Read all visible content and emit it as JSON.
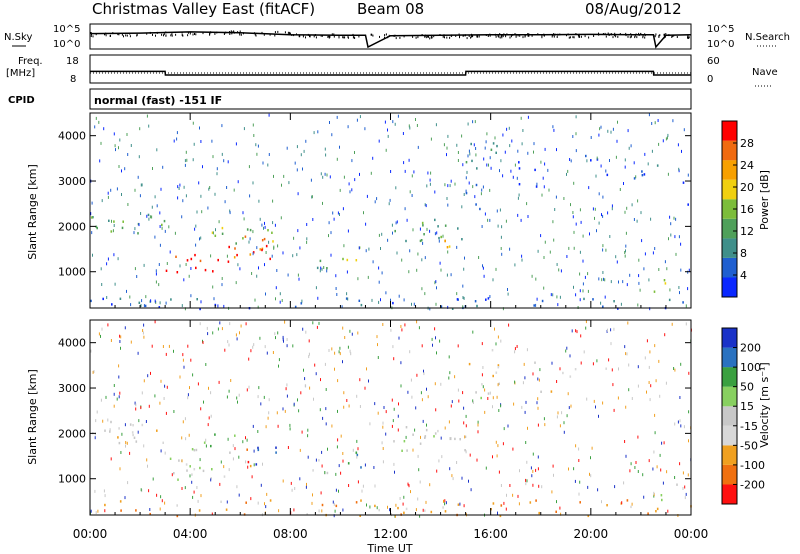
{
  "header": {
    "site_title": "Christmas Valley East (fitACF)",
    "beam": "Beam 08",
    "date": "08/Aug/2012"
  },
  "colors": {
    "power_scale": [
      "#0a28ff",
      "#1f5fd0",
      "#3f8f8a",
      "#4fa05a",
      "#7cbd3a",
      "#f0d010",
      "#f7a000",
      "#f06a10",
      "#ff0000"
    ],
    "velocity_scale": [
      "#1a32c8",
      "#2a72c0",
      "#3aa040",
      "#88d060",
      "#c8c8c8",
      "#d8d8d8",
      "#f0a020",
      "#f07010",
      "#ff1010"
    ],
    "noise": "#000000"
  },
  "chart_data": [
    {
      "type": "line",
      "name": "noise-panel",
      "left_label": "N.Sky",
      "right_label": "N.Search",
      "left_ticks": [
        "10^5",
        "10^0"
      ],
      "right_ticks": [
        "10^5",
        "10^0"
      ],
      "xlim": [
        0,
        24
      ],
      "series": [
        {
          "name": "N.Sky",
          "x": [
            0,
            2,
            4,
            6,
            8,
            10,
            11,
            11.1,
            12,
            14,
            16,
            18,
            20,
            22,
            22.5,
            22.6,
            23,
            24
          ],
          "y": [
            3.2,
            3.3,
            3.6,
            3.4,
            2.9,
            2.8,
            2.8,
            0,
            2.7,
            2.8,
            2.9,
            2.9,
            3.0,
            2.9,
            2.9,
            0,
            2.8,
            2.9
          ]
        }
      ]
    },
    {
      "type": "line",
      "name": "freq-panel",
      "left_label": "Freq.",
      "left_unit": "[MHz]",
      "right_label": "Nave",
      "left_ticks": [
        "18",
        "8"
      ],
      "right_ticks": [
        "60",
        "0"
      ],
      "xlim": [
        0,
        24
      ],
      "series": [
        {
          "name": "Freq",
          "x": [
            0,
            3,
            3.01,
            11,
            11.01,
            15,
            15.01,
            22.5,
            22.51,
            24
          ],
          "y": [
            12,
            12,
            10.5,
            10.5,
            10.5,
            10.5,
            12,
            12,
            10.5,
            10.5
          ]
        },
        {
          "name": "Nave",
          "x": [
            0,
            24
          ],
          "y": [
            20,
            20
          ]
        }
      ]
    },
    {
      "type": "text",
      "name": "cpid-panel",
      "label": "CPID",
      "value": "normal (fast) -151 IF"
    },
    {
      "type": "heatmap",
      "name": "power",
      "ylabel": "Slant Range [km]",
      "yticks": [
        1000,
        2000,
        3000,
        4000
      ],
      "ylim": [
        200,
        4500
      ],
      "xlim": [
        0,
        24
      ],
      "colorbar_label": "Power [dB]",
      "colorbar_ticks": [
        "28",
        "24",
        "20",
        "16",
        "12",
        "8",
        "4"
      ],
      "blobs": [
        {
          "t": [
            0.0,
            3.0
          ],
          "r": [
            1850,
            2300
          ],
          "level": 3,
          "density": 0.8
        },
        {
          "t": [
            3.0,
            5.5
          ],
          "r": [
            1000,
            1400
          ],
          "level": 8,
          "density": 0.9
        },
        {
          "t": [
            5.5,
            7.5
          ],
          "r": [
            1300,
            1800
          ],
          "level": 7,
          "density": 0.8
        },
        {
          "t": [
            4.0,
            7.5
          ],
          "r": [
            1600,
            2000
          ],
          "level": 4,
          "density": 0.6
        },
        {
          "t": [
            6.5,
            7.2
          ],
          "r": [
            1350,
            1700
          ],
          "level": 8,
          "density": 0.9
        },
        {
          "t": [
            8.5,
            9.5
          ],
          "r": [
            1100,
            1400
          ],
          "level": 2,
          "density": 0.7
        },
        {
          "t": [
            10.0,
            10.8
          ],
          "r": [
            1100,
            1600
          ],
          "level": 5,
          "density": 0.8
        },
        {
          "t": [
            12.0,
            15.0
          ],
          "r": [
            1700,
            2200
          ],
          "level": 3,
          "density": 0.7
        },
        {
          "t": [
            14.0,
            15.0
          ],
          "r": [
            1500,
            1900
          ],
          "level": 6,
          "density": 0.8
        },
        {
          "t": [
            15.0,
            16.5
          ],
          "r": [
            3200,
            3900
          ],
          "level": 2,
          "density": 0.6
        },
        {
          "t": [
            15.0,
            16.0
          ],
          "r": [
            2400,
            3100
          ],
          "level": 1,
          "density": 0.4
        },
        {
          "t": [
            17.0,
            21.0
          ],
          "r": [
            2900,
            3600
          ],
          "level": 0,
          "density": 0.25
        },
        {
          "t": [
            21.0,
            23.0
          ],
          "r": [
            2800,
            3400
          ],
          "level": 1,
          "density": 0.3
        },
        {
          "t": [
            23.0,
            24.0
          ],
          "r": [
            2500,
            3000
          ],
          "level": 0,
          "density": 0.3
        },
        {
          "t": [
            22.5,
            23.5
          ],
          "r": [
            500,
            900
          ],
          "level": 5,
          "density": 0.6
        },
        {
          "t": [
            0.0,
            24.0
          ],
          "r": [
            200,
            450
          ],
          "level": 1,
          "density": 0.5
        }
      ]
    },
    {
      "type": "heatmap",
      "name": "velocity",
      "ylabel": "Slant Range [km]",
      "yticks": [
        1000,
        2000,
        3000,
        4000
      ],
      "ylim": [
        200,
        4500
      ],
      "xlim": [
        0,
        24
      ],
      "colorbar_label": "Velocity [m s⁻¹]",
      "colorbar_ticks": [
        "200",
        "100",
        "50",
        "15",
        "-15",
        "-50",
        "-100",
        "-200"
      ],
      "blobs": [
        {
          "t": [
            0.0,
            3.0
          ],
          "r": [
            1800,
            2300
          ],
          "level": 5,
          "density": 0.8
        },
        {
          "t": [
            3.0,
            5.5
          ],
          "r": [
            1000,
            1500
          ],
          "level": 4,
          "density": 0.9
        },
        {
          "t": [
            4.0,
            6.0
          ],
          "r": [
            1600,
            2100
          ],
          "level": 3,
          "density": 0.6
        },
        {
          "t": [
            6.5,
            7.5
          ],
          "r": [
            1300,
            1750
          ],
          "level": 0,
          "density": 0.9
        },
        {
          "t": [
            5.5,
            6.5
          ],
          "r": [
            1300,
            1700
          ],
          "level": 7,
          "density": 0.5
        },
        {
          "t": [
            8.5,
            9.5
          ],
          "r": [
            1100,
            1500
          ],
          "level": 4,
          "density": 0.6
        },
        {
          "t": [
            10.0,
            10.8
          ],
          "r": [
            1100,
            1600
          ],
          "level": 2,
          "density": 0.8
        },
        {
          "t": [
            12.0,
            15.0
          ],
          "r": [
            1600,
            2200
          ],
          "level": 4,
          "density": 0.7
        },
        {
          "t": [
            15.0,
            16.5
          ],
          "r": [
            3100,
            3900
          ],
          "level": 5,
          "density": 0.5
        },
        {
          "t": [
            15.0,
            16.0
          ],
          "r": [
            2400,
            3000
          ],
          "level": 4,
          "density": 0.4
        },
        {
          "t": [
            17.0,
            21.0
          ],
          "r": [
            2900,
            3600
          ],
          "level": 5,
          "density": 0.2
        },
        {
          "t": [
            22.5,
            23.5
          ],
          "r": [
            500,
            900
          ],
          "level": 4,
          "density": 0.6
        },
        {
          "t": [
            0.0,
            24.0
          ],
          "r": [
            200,
            550
          ],
          "level": 6,
          "density": 0.45
        }
      ]
    }
  ],
  "x_axis": {
    "tick_labels": [
      "00:00",
      "04:00",
      "08:00",
      "12:00",
      "16:00",
      "20:00",
      "00:00"
    ],
    "tick_values": [
      0,
      4,
      8,
      12,
      16,
      20,
      24
    ],
    "label": "Time UT"
  }
}
